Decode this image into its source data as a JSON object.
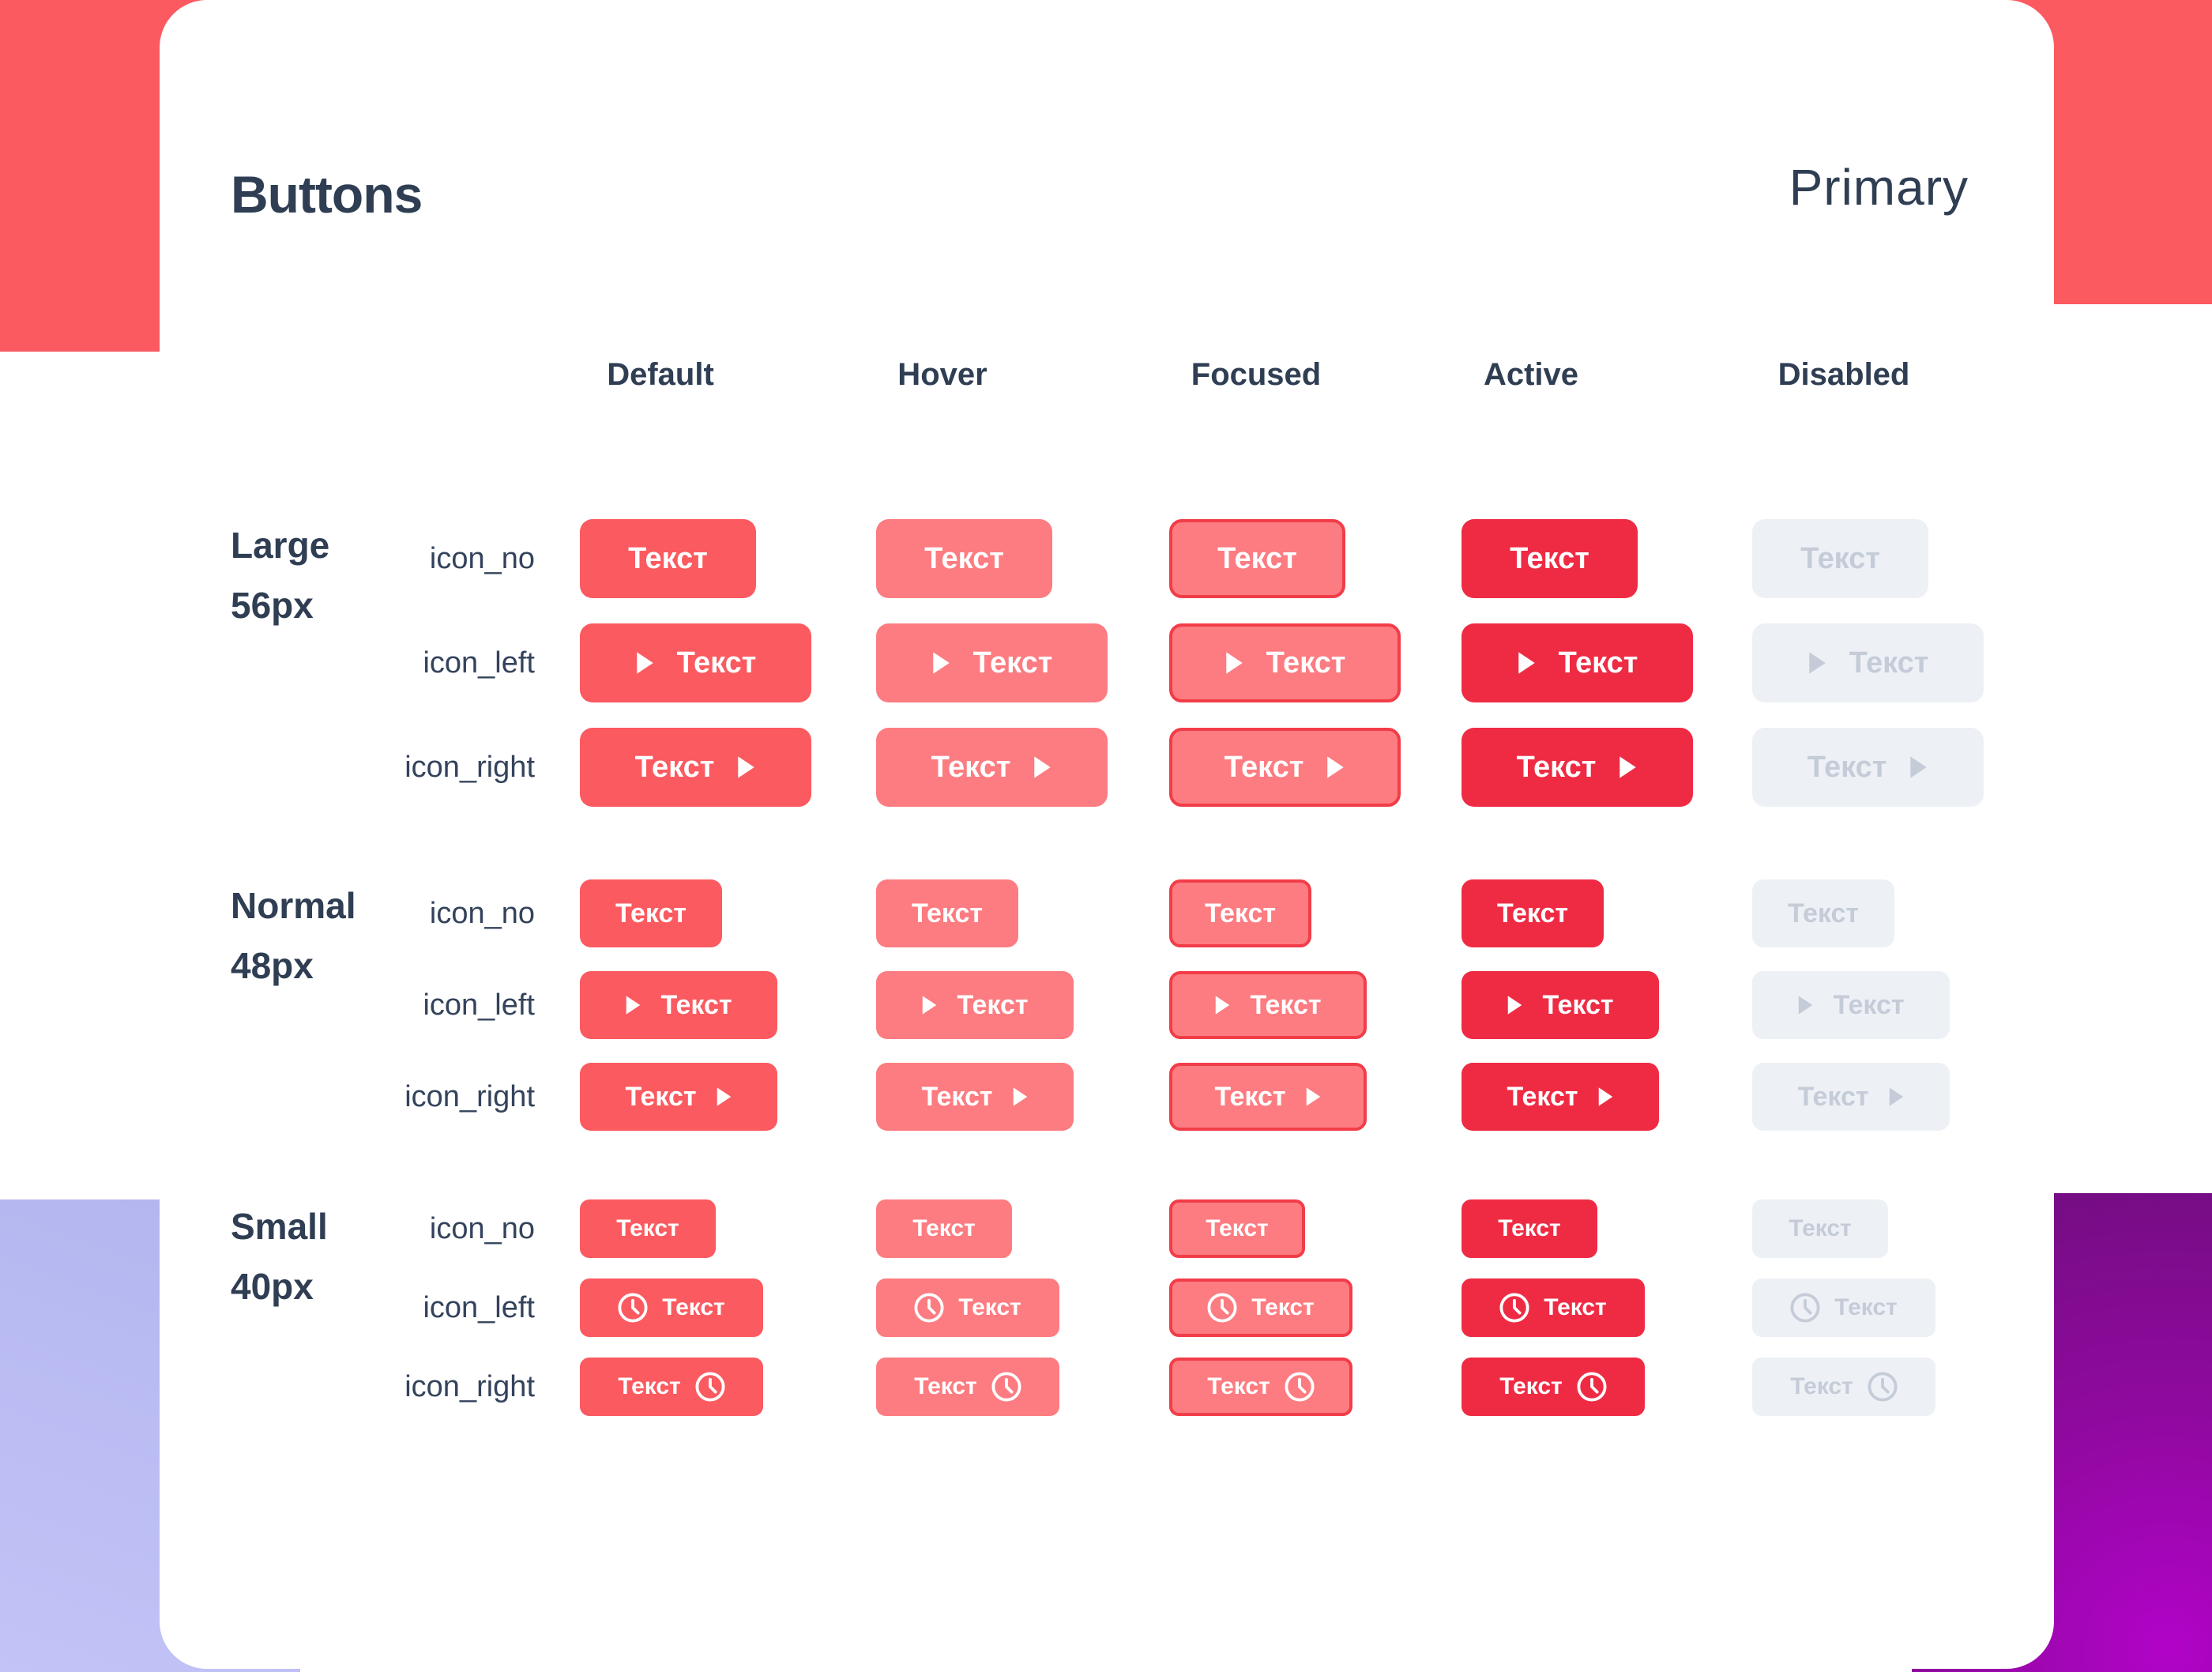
{
  "page": {
    "title": "Buttons",
    "variant": "Primary",
    "button_label": "Текст"
  },
  "states": [
    {
      "id": "default",
      "label": "Default"
    },
    {
      "id": "hover",
      "label": "Hover"
    },
    {
      "id": "focused",
      "label": "Focused"
    },
    {
      "id": "active",
      "label": "Active"
    },
    {
      "id": "disabled",
      "label": "Disabled"
    }
  ],
  "variants": [
    "icon_no",
    "icon_left",
    "icon_right"
  ],
  "sizes": [
    {
      "id": "large",
      "label": "Large",
      "size_label": "56px",
      "icon": "play"
    },
    {
      "id": "normal",
      "label": "Normal",
      "size_label": "48px",
      "icon": "play"
    },
    {
      "id": "small",
      "label": "Small",
      "size_label": "40px",
      "icon": "clock"
    }
  ],
  "colors": {
    "accent_red": "#FB5A60",
    "navy": "#2F3E53",
    "label_navy": "#34435C",
    "btn_default": "#FB5A60",
    "btn_hover": "#FC7C81",
    "btn_focus_fill": "#FC7C81",
    "btn_focus_border": "#F23D49",
    "btn_active": "#EF2B44",
    "btn_disabled": "#EDF1F6",
    "btn_disabled_text": "#C5CCD8",
    "btn_text": "#FFFFFF",
    "lavender_1": "#B2B5EF",
    "lavender_2": "#C2C3F6",
    "purple_dark": "#6F0E7D",
    "purple_mid": "#90099F",
    "purple_bright": "#B103C8",
    "card_bg": "#FFFFFF"
  }
}
